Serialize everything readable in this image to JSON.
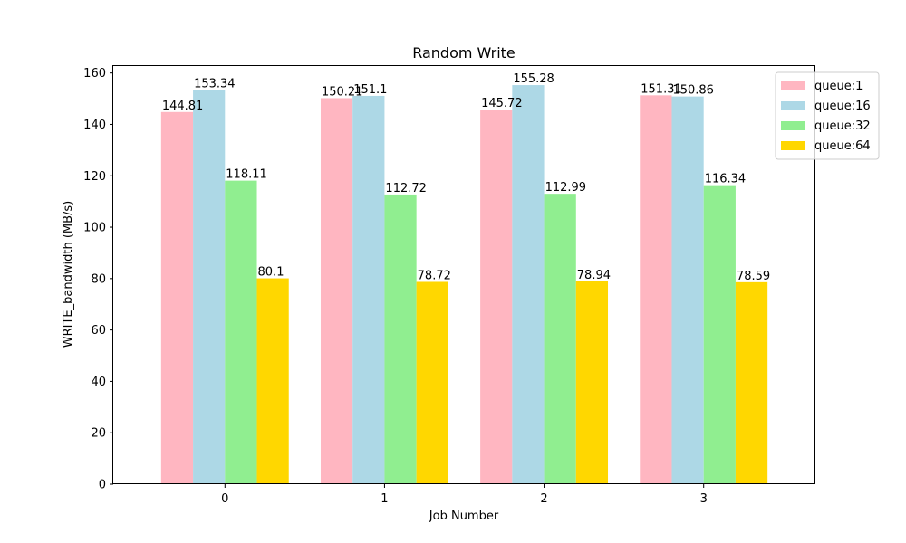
{
  "chart_data": {
    "type": "bar",
    "title": "Random Write",
    "xlabel": "Job Number",
    "ylabel": "WRITE_bandwidth (MB/s)",
    "categories": [
      "0",
      "1",
      "2",
      "3"
    ],
    "ylim": [
      0,
      162.7
    ],
    "yticks": [
      0,
      20,
      40,
      60,
      80,
      100,
      120,
      140,
      160
    ],
    "legend_position": "top-right",
    "grid": false,
    "series": [
      {
        "name": "queue:1",
        "color": "#ffb6c1",
        "values": [
          144.81,
          150.21,
          145.72,
          151.31
        ]
      },
      {
        "name": "queue:16",
        "color": "#add8e6",
        "values": [
          153.34,
          151.1,
          155.28,
          150.86
        ]
      },
      {
        "name": "queue:32",
        "color": "#90ee90",
        "values": [
          118.11,
          112.72,
          112.99,
          116.34
        ]
      },
      {
        "name": "queue:64",
        "color": "#ffd700",
        "values": [
          80.1,
          78.72,
          78.94,
          78.59
        ]
      }
    ]
  }
}
